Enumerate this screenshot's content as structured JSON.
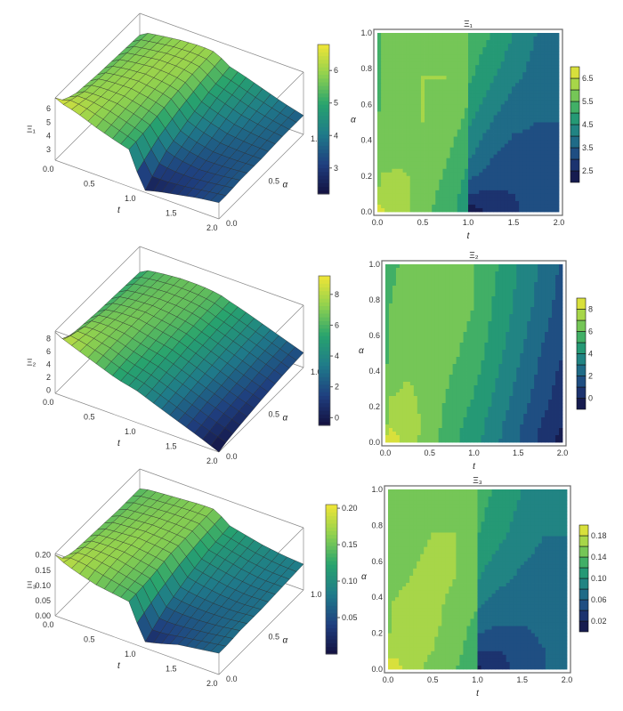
{
  "chart_data": [
    {
      "type": "surface+contour",
      "title": "Ξ₁",
      "zlabel": "Ξ₁",
      "xlabel": "t",
      "ylabel": "α",
      "t_grid": [
        0,
        0.05,
        0.25,
        0.5,
        0.75,
        0.99,
        1.01,
        1.25,
        1.5,
        1.75,
        2.0
      ],
      "alpha_grid": [
        0,
        0.1,
        0.25,
        0.5,
        0.75,
        1.0
      ],
      "values": [
        [
          6.8,
          6.6,
          6.3,
          5.7,
          5.2,
          4.8,
          2.2,
          2.6,
          2.9,
          3.2,
          3.4
        ],
        [
          6.0,
          6.3,
          6.2,
          5.8,
          5.3,
          4.8,
          3.0,
          2.9,
          3.0,
          3.2,
          3.4
        ],
        [
          5.6,
          5.9,
          6.0,
          5.9,
          5.5,
          5.0,
          3.9,
          3.4,
          3.2,
          3.3,
          3.5
        ],
        [
          5.4,
          5.7,
          5.9,
          6.0,
          5.8,
          5.4,
          4.6,
          4.0,
          3.6,
          3.5,
          3.5
        ],
        [
          5.3,
          5.6,
          5.8,
          6.0,
          6.0,
          5.7,
          5.1,
          4.6,
          4.1,
          3.8,
          3.6
        ],
        [
          5.2,
          5.5,
          5.7,
          5.9,
          6.0,
          5.9,
          5.4,
          5.0,
          4.5,
          4.0,
          3.6
        ]
      ],
      "zlim": [
        2.2,
        6.8
      ],
      "z_ticks": [
        "3",
        "4",
        "5",
        "6"
      ],
      "t_ticks": [
        "0.0",
        "0.5",
        "1.0",
        "1.5",
        "2.0"
      ],
      "alpha_ticks": [
        "0.0",
        "0.5",
        "1.0"
      ],
      "alpha_ticks_contour": [
        "0.0",
        "0.2",
        "0.4",
        "0.6",
        "0.8",
        "1.0"
      ],
      "colorbar_ticks": [
        "3",
        "4",
        "5",
        "6"
      ],
      "contour_levels": [
        2.0,
        2.5,
        3.0,
        3.5,
        4.0,
        4.5,
        5.0,
        5.5,
        6.0,
        6.5,
        7.0
      ],
      "contour_colorbar_labels": [
        "2.5",
        "3.5",
        "4.5",
        "5.5",
        "6.5"
      ]
    },
    {
      "type": "surface+contour",
      "title": "Ξ₂",
      "zlabel": "Ξ₂",
      "xlabel": "t",
      "ylabel": "α",
      "t_grid": [
        0,
        0.05,
        0.25,
        0.5,
        0.75,
        0.99,
        1.01,
        1.25,
        1.5,
        1.75,
        2.0
      ],
      "alpha_grid": [
        0,
        0.1,
        0.25,
        0.5,
        0.75,
        1.0
      ],
      "values": [
        [
          9.0,
          8.6,
          7.6,
          6.4,
          5.2,
          4.5,
          4.4,
          3.2,
          2.0,
          0.8,
          -0.5
        ],
        [
          6.5,
          7.8,
          7.5,
          6.6,
          5.4,
          4.6,
          4.5,
          3.4,
          2.2,
          1.0,
          0.0
        ],
        [
          6.0,
          7.0,
          7.2,
          6.7,
          5.7,
          5.0,
          4.9,
          3.8,
          2.6,
          1.5,
          0.4
        ],
        [
          5.6,
          6.3,
          6.7,
          6.8,
          6.2,
          5.6,
          5.5,
          4.4,
          3.2,
          2.0,
          1.0
        ],
        [
          5.4,
          6.0,
          6.4,
          6.6,
          6.5,
          6.0,
          5.8,
          4.8,
          3.7,
          2.6,
          1.5
        ],
        [
          5.2,
          5.8,
          6.2,
          6.5,
          6.5,
          6.2,
          6.0,
          5.1,
          4.0,
          2.9,
          1.8
        ]
      ],
      "zlim": [
        -0.5,
        9.2
      ],
      "z_ticks": [
        "0",
        "2",
        "4",
        "6",
        "8"
      ],
      "t_ticks": [
        "0.0",
        "0.5",
        "1.0",
        "1.5",
        "2.0"
      ],
      "alpha_ticks": [
        "0.0",
        "0.5",
        "1.0"
      ],
      "alpha_ticks_contour": [
        "0.0",
        "0.2",
        "0.4",
        "0.6",
        "0.8",
        "1.0"
      ],
      "colorbar_ticks": [
        "0",
        "2",
        "4",
        "6",
        "8"
      ],
      "contour_levels": [
        -1,
        0,
        1,
        2,
        3,
        4,
        5,
        6,
        7,
        8,
        9
      ],
      "contour_colorbar_labels": [
        "0",
        "2",
        "4",
        "6",
        "8"
      ]
    },
    {
      "type": "surface+contour",
      "title": "Ξ₃",
      "zlabel": "Ξ₃",
      "xlabel": "t",
      "ylabel": "α",
      "t_grid": [
        0,
        0.05,
        0.25,
        0.5,
        0.75,
        0.99,
        1.01,
        1.25,
        1.5,
        1.75,
        2.0
      ],
      "alpha_grid": [
        0,
        0.1,
        0.25,
        0.5,
        0.75,
        1.0
      ],
      "values": [
        [
          0.2,
          0.19,
          0.17,
          0.15,
          0.14,
          0.13,
          0.015,
          0.03,
          0.05,
          0.06,
          0.07
        ],
        [
          0.16,
          0.175,
          0.175,
          0.16,
          0.145,
          0.13,
          0.04,
          0.04,
          0.05,
          0.06,
          0.07
        ],
        [
          0.15,
          0.165,
          0.17,
          0.165,
          0.15,
          0.135,
          0.07,
          0.06,
          0.06,
          0.065,
          0.075
        ],
        [
          0.145,
          0.155,
          0.16,
          0.165,
          0.16,
          0.15,
          0.1,
          0.085,
          0.075,
          0.07,
          0.075
        ],
        [
          0.14,
          0.15,
          0.155,
          0.16,
          0.16,
          0.155,
          0.12,
          0.105,
          0.09,
          0.08,
          0.08
        ],
        [
          0.14,
          0.145,
          0.15,
          0.155,
          0.16,
          0.16,
          0.13,
          0.115,
          0.1,
          0.09,
          0.085
        ]
      ],
      "zlim": [
        0.0,
        0.205
      ],
      "z_ticks": [
        "0.00",
        "0.05",
        "0.10",
        "0.15",
        "0.20"
      ],
      "t_ticks": [
        "0.0",
        "0.5",
        "1.0",
        "1.5",
        "2.0"
      ],
      "alpha_ticks": [
        "0.0",
        "0.5",
        "1.0"
      ],
      "alpha_ticks_contour": [
        "0.0",
        "0.2",
        "0.4",
        "0.6",
        "0.8",
        "1.0"
      ],
      "colorbar_ticks": [
        "0.05",
        "0.10",
        "0.15",
        "0.20"
      ],
      "contour_levels": [
        0.0,
        0.02,
        0.04,
        0.06,
        0.08,
        0.1,
        0.12,
        0.14,
        0.16,
        0.18,
        0.2
      ],
      "contour_colorbar_labels": [
        "0.02",
        "0.06",
        "0.10",
        "0.14",
        "0.18"
      ]
    }
  ]
}
